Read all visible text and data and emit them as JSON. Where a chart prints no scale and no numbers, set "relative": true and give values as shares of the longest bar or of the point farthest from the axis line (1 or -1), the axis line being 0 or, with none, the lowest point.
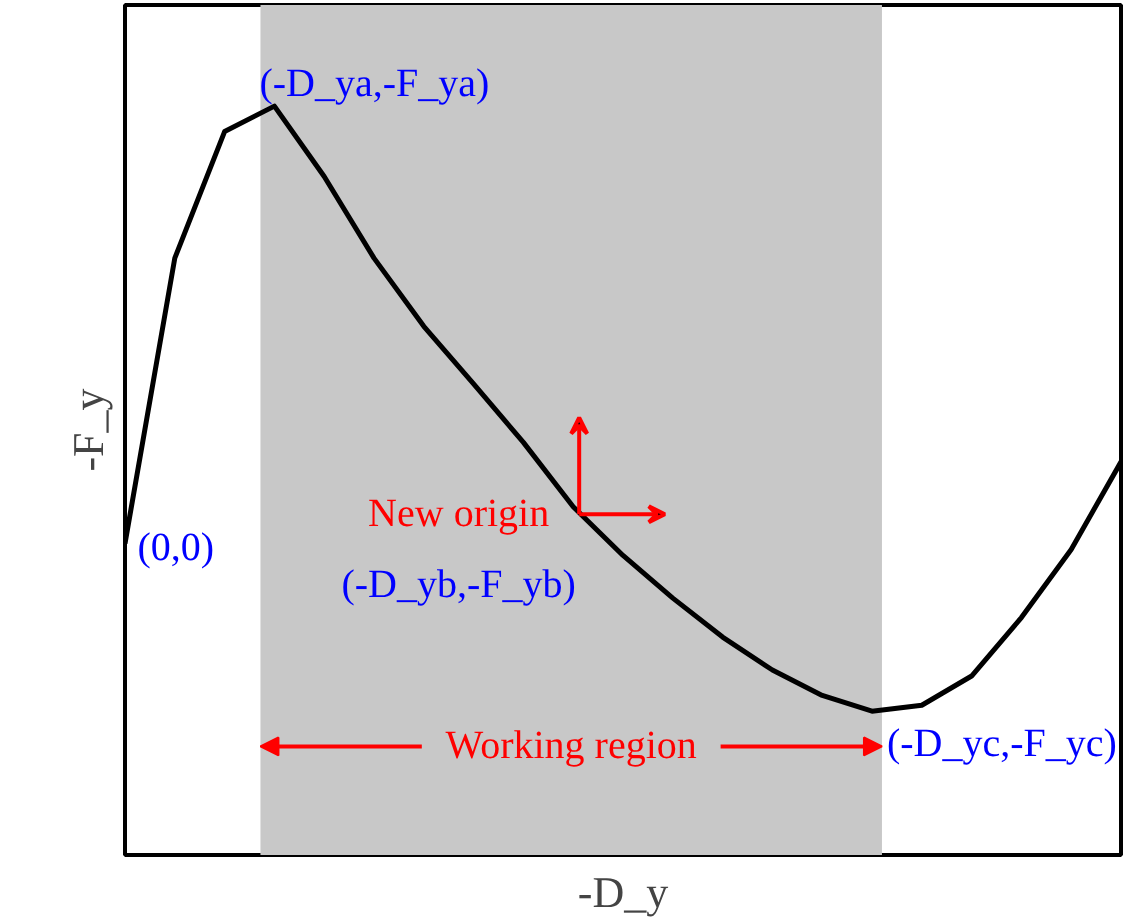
{
  "chart_data": {
    "type": "line",
    "relative": true,
    "xlabel": "-D_y",
    "ylabel": "-F_y",
    "categories": [
      null,
      null,
      null,
      null,
      null,
      null,
      null,
      null,
      null,
      null,
      null,
      null,
      null,
      null,
      null,
      null,
      null,
      null,
      null,
      null,
      null
    ],
    "series": [
      {
        "color": "#000000",
        "values": [
          0.416,
          0.797,
          0.966,
          1.0,
          0.906,
          0.797,
          0.706,
          0.629,
          0.551,
          0.465,
          0.4,
          0.343,
          0.291,
          0.247,
          0.213,
          0.192,
          0.2,
          0.239,
          0.317,
          0.408,
          0.525
        ]
      }
    ],
    "annotations": [
      "(-D_ya,-F_ya)",
      "(0,0)",
      "New origin",
      "(-D_yb,-F_yb)",
      "(-D_yc,-F_yc)",
      "Working region"
    ],
    "grid": false,
    "tick_labels": false,
    "marker": "none",
    "line_style": "solid"
  }
}
